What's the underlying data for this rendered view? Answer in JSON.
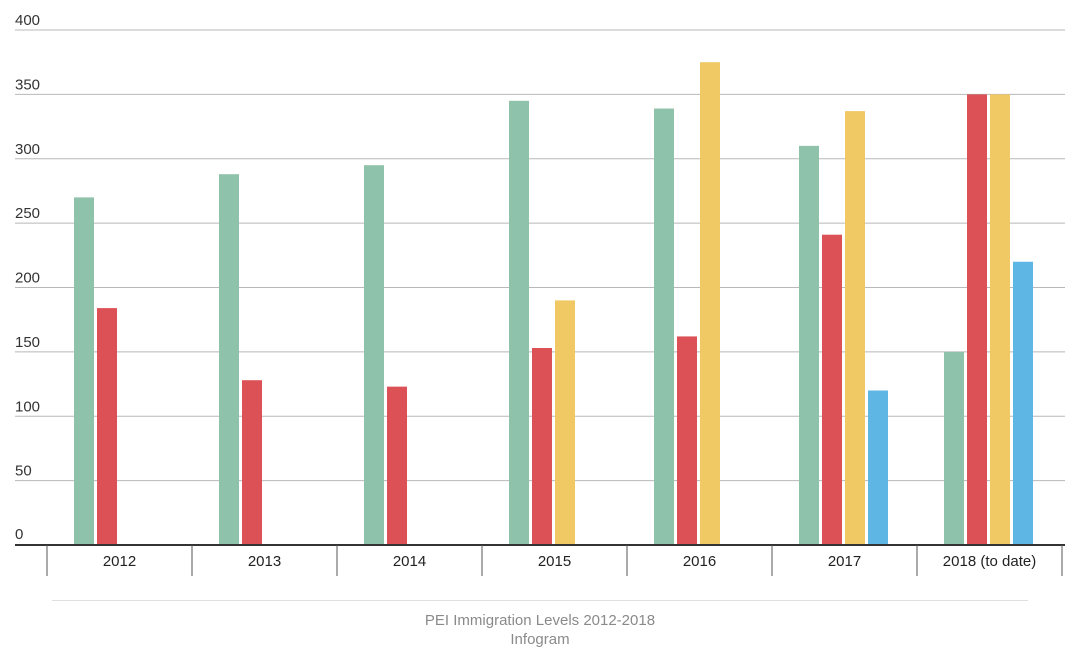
{
  "chart_data": {
    "type": "bar",
    "title": "",
    "xlabel": "",
    "ylabel": "",
    "ylim": [
      0,
      400
    ],
    "yticks": [
      0,
      50,
      100,
      150,
      200,
      250,
      300,
      350,
      400
    ],
    "grid": true,
    "legend": "none",
    "categories": [
      "2012",
      "2013",
      "2014",
      "2015",
      "2016",
      "2017",
      "2018 (to date)"
    ],
    "series": [
      {
        "color": "#8fc2aa",
        "values": [
          270,
          288,
          295,
          345,
          339,
          310,
          150
        ]
      },
      {
        "color": "#dc5156",
        "values": [
          184,
          128,
          123,
          153,
          162,
          241,
          350
        ]
      },
      {
        "color": "#f0c965",
        "values": [
          null,
          null,
          null,
          190,
          375,
          337,
          350
        ]
      },
      {
        "color": "#5db6e3",
        "values": [
          null,
          null,
          null,
          null,
          null,
          120,
          220
        ]
      }
    ]
  },
  "caption": {
    "line1": "PEI Immigration Levels 2012-2018",
    "line2": "Infogram"
  }
}
